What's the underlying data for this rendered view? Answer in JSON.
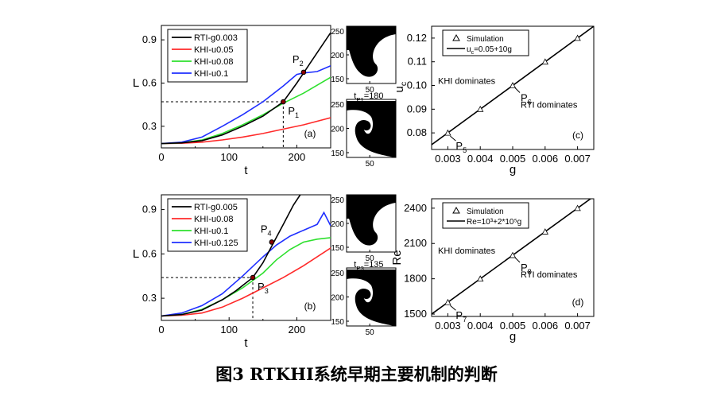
{
  "caption": "图3  RTKHI系统早期主要机制的判断",
  "colors": {
    "black": "#000000",
    "red": "#ff2a2a",
    "green": "#2ee02e",
    "blue": "#1f2fff"
  },
  "chart_data": [
    {
      "type": "line",
      "panel": "(a)",
      "xlabel": "t",
      "ylabel": "L",
      "xlim": [
        0,
        250
      ],
      "ylim": [
        0.15,
        1.0
      ],
      "xticks": [
        0,
        100,
        200
      ],
      "yticks": [
        0.3,
        0.6,
        0.9
      ],
      "legend_position": "top-left",
      "series": [
        {
          "name": "RTI-g0.003",
          "color": "black",
          "x": [
            0,
            30,
            60,
            90,
            120,
            150,
            180,
            200,
            220,
            240,
            250
          ],
          "y": [
            0.18,
            0.185,
            0.2,
            0.24,
            0.3,
            0.37,
            0.47,
            0.6,
            0.74,
            0.88,
            0.95
          ]
        },
        {
          "name": "KHI-u0.05",
          "color": "red",
          "x": [
            0,
            30,
            60,
            90,
            120,
            150,
            180,
            210,
            250
          ],
          "y": [
            0.18,
            0.182,
            0.19,
            0.205,
            0.225,
            0.25,
            0.28,
            0.31,
            0.36
          ]
        },
        {
          "name": "KHI-u0.08",
          "color": "green",
          "x": [
            0,
            30,
            60,
            90,
            120,
            150,
            180,
            210,
            250
          ],
          "y": [
            0.18,
            0.185,
            0.205,
            0.25,
            0.31,
            0.38,
            0.46,
            0.53,
            0.64
          ]
        },
        {
          "name": "KHI-u0.1",
          "color": "blue",
          "x": [
            0,
            30,
            60,
            90,
            120,
            150,
            180,
            200,
            210,
            230,
            250
          ],
          "y": [
            0.18,
            0.19,
            0.225,
            0.3,
            0.38,
            0.47,
            0.58,
            0.66,
            0.67,
            0.68,
            0.72
          ]
        }
      ],
      "points": [
        {
          "label": "P",
          "sub": "1",
          "x": 180,
          "y": 0.47
        },
        {
          "label": "P",
          "sub": "2",
          "x": 210,
          "y": 0.675
        }
      ],
      "guide": {
        "x": 180,
        "y": 0.47
      }
    },
    {
      "type": "line",
      "panel": "(b)",
      "xlabel": "t",
      "ylabel": "L",
      "xlim": [
        0,
        250
      ],
      "ylim": [
        0.15,
        1.0
      ],
      "xticks": [
        0,
        100,
        200
      ],
      "yticks": [
        0.3,
        0.6,
        0.9
      ],
      "legend_position": "top-left",
      "series": [
        {
          "name": "RTI-g0.005",
          "color": "black",
          "x": [
            0,
            30,
            60,
            90,
            110,
            135,
            150,
            165,
            180,
            195,
            205
          ],
          "y": [
            0.18,
            0.19,
            0.22,
            0.29,
            0.35,
            0.44,
            0.54,
            0.67,
            0.8,
            0.93,
            1.0
          ]
        },
        {
          "name": "KHI-u0.08",
          "color": "red",
          "x": [
            0,
            30,
            60,
            90,
            120,
            150,
            180,
            210,
            250
          ],
          "y": [
            0.18,
            0.185,
            0.2,
            0.24,
            0.3,
            0.37,
            0.44,
            0.52,
            0.64
          ]
        },
        {
          "name": "KHI-u0.1",
          "color": "green",
          "x": [
            0,
            30,
            60,
            90,
            120,
            150,
            170,
            190,
            210,
            230,
            250
          ],
          "y": [
            0.18,
            0.19,
            0.225,
            0.29,
            0.37,
            0.47,
            0.56,
            0.63,
            0.68,
            0.7,
            0.71
          ]
        },
        {
          "name": "KHI-u0.125",
          "color": "blue",
          "x": [
            0,
            30,
            60,
            90,
            120,
            150,
            170,
            190,
            210,
            230,
            240,
            250
          ],
          "y": [
            0.18,
            0.2,
            0.25,
            0.33,
            0.45,
            0.58,
            0.66,
            0.72,
            0.76,
            0.8,
            0.88,
            0.79
          ]
        }
      ],
      "points": [
        {
          "label": "P",
          "sub": "3",
          "x": 135,
          "y": 0.44
        },
        {
          "label": "P",
          "sub": "4",
          "x": 163,
          "y": 0.68
        }
      ],
      "guide": {
        "x": 135,
        "y": 0.44
      }
    },
    {
      "type": "scatter",
      "panel": "(c)",
      "xlabel": "g",
      "ylabel": "u",
      "ylabel_sub": "c",
      "xlim": [
        0.0025,
        0.0075
      ],
      "ylim": [
        0.073,
        0.125
      ],
      "xticks": [
        "0.003",
        "0.004",
        "0.005",
        "0.006",
        "0.007"
      ],
      "yticks": [
        "0.08",
        "0.09",
        "0.10",
        "0.11",
        "0.12"
      ],
      "legend_position": "top-left",
      "legend": {
        "marker_label": "Simulation",
        "line_label_main": "u",
        "line_label_sub": "c",
        "line_label_rest": "=0.05+10g"
      },
      "simulation": {
        "x": [
          0.003,
          0.004,
          0.005,
          0.006,
          0.007
        ],
        "y": [
          0.08,
          0.09,
          0.1,
          0.11,
          0.12
        ]
      },
      "fit_line": {
        "x": [
          0.0025,
          0.0075
        ],
        "y": [
          0.075,
          0.125
        ]
      },
      "point_labels": [
        {
          "label": "P",
          "sub": "5",
          "x": 0.003,
          "y": 0.08
        },
        {
          "label": "P",
          "sub": "6",
          "x": 0.005,
          "y": 0.1
        }
      ],
      "annotations": [
        "KHI dominates",
        "RTI dominates"
      ]
    },
    {
      "type": "scatter",
      "panel": "(d)",
      "xlabel": "g",
      "ylabel": "Re",
      "xlim": [
        0.0025,
        0.0075
      ],
      "ylim": [
        1480,
        2480
      ],
      "xticks": [
        "0.003",
        "0.004",
        "0.005",
        "0.006",
        "0.007"
      ],
      "yticks": [
        "1500",
        "1800",
        "2100",
        "2400"
      ],
      "legend_position": "top-left",
      "legend": {
        "marker_label": "Simulation",
        "line_label": "Re=10³+2*10⁵g"
      },
      "simulation": {
        "x": [
          0.003,
          0.004,
          0.005,
          0.006,
          0.007
        ],
        "y": [
          1600,
          1800,
          2000,
          2200,
          2400
        ]
      },
      "fit_line": {
        "x": [
          0.0025,
          0.0075
        ],
        "y": [
          1500,
          2500
        ]
      },
      "point_labels": [
        {
          "label": "P",
          "sub": "7",
          "x": 0.003,
          "y": 1600
        },
        {
          "label": "P",
          "sub": "8",
          "x": 0.005,
          "y": 2000
        }
      ],
      "annotations": [
        "KHI dominates",
        "RTI dominates"
      ]
    }
  ],
  "snapshots": [
    {
      "panel": "top",
      "yticks": [
        "250",
        "200",
        "150"
      ],
      "xtick": "50",
      "label_main": "t",
      "label_sub": "P1",
      "label_rest": "=180"
    },
    {
      "panel": "bottom",
      "yticks": [
        "250",
        "200",
        "150"
      ],
      "xtick": "50",
      "label_main": "t",
      "label_sub": "P3",
      "label_rest": "=135"
    }
  ]
}
